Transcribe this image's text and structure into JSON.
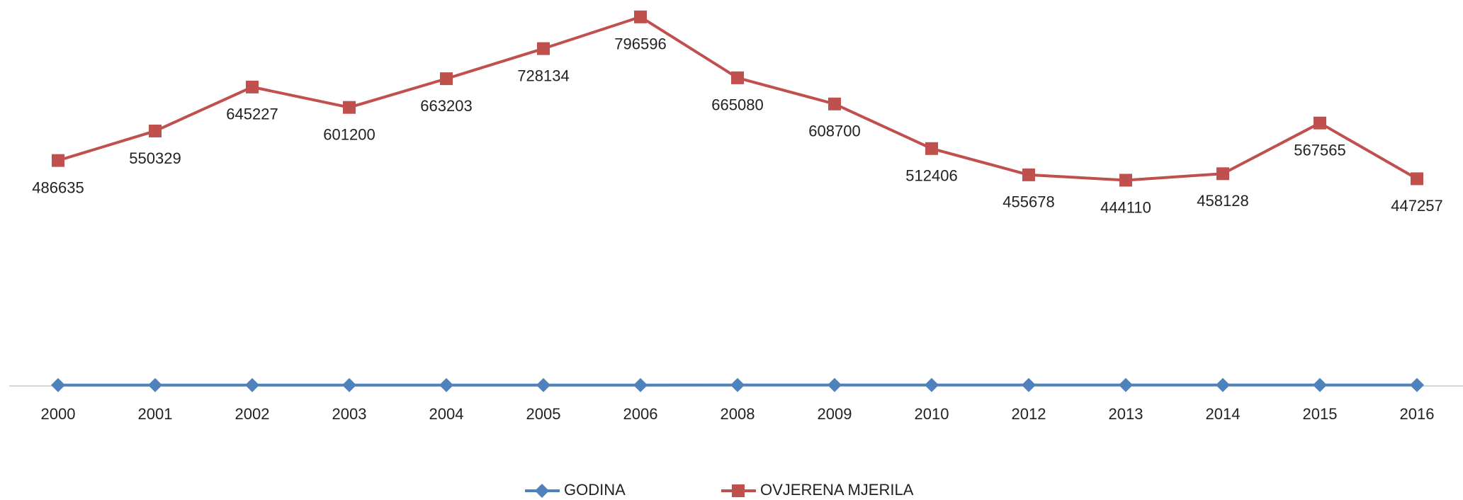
{
  "chart_data": {
    "type": "line",
    "categories": [
      "2000",
      "2001",
      "2002",
      "2003",
      "2004",
      "2005",
      "2006",
      "2008",
      "2009",
      "2010",
      "2012",
      "2013",
      "2014",
      "2015",
      "2016"
    ],
    "series": [
      {
        "name": "GODINA",
        "color": "#4f81bd",
        "marker": "diamond",
        "values": [
          2000,
          2001,
          2002,
          2003,
          2004,
          2005,
          2006,
          2008,
          2009,
          2010,
          2012,
          2013,
          2014,
          2015,
          2016
        ]
      },
      {
        "name": "OVJERENA MJERILA",
        "color": "#c0504d",
        "marker": "square",
        "data_labels": true,
        "values": [
          486635,
          550329,
          645227,
          601200,
          663203,
          728134,
          796596,
          665080,
          608700,
          512406,
          455678,
          444110,
          458128,
          567565,
          447257
        ]
      }
    ],
    "ylim": [
      0,
      830000
    ],
    "legend": "bottom"
  }
}
